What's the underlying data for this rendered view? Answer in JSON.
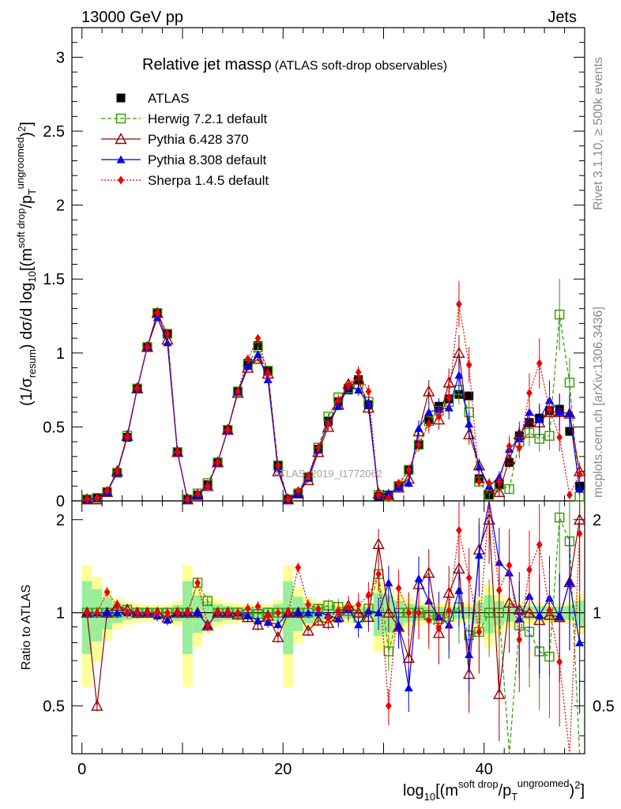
{
  "header": {
    "left": "13000 GeV pp",
    "right": "Jets",
    "side_top": "Rivet 3.1.10, ≥ 500k events",
    "side_bottom": "mcplots.cern.ch [arXiv:1306.3436]",
    "watermark": "ATLAS_2019_I1772062"
  },
  "chart_data": {
    "type": "scatter",
    "title": "Relative jet massρ",
    "subtitle": "(ATLAS soft-drop observables)",
    "xlabel": "log10[(m^{soft drop}/p_T^{ungroomed})^2]",
    "ylabel": "(1/σ_resum) dσ/d log10[(m^{soft drop}/p_T^{ungroomed})^2]",
    "ratio_ylabel": "Ratio to ATLAS",
    "xlim": [
      -1,
      50
    ],
    "ylim": [
      0,
      3.2
    ],
    "ratio_ylim": [
      0.35,
      2.3
    ],
    "x_ticks": [
      0,
      20,
      40
    ],
    "y_ticks": [
      0,
      0.5,
      1,
      1.5,
      2,
      2.5,
      3
    ],
    "ratio_ticks": [
      0.5,
      1,
      2
    ],
    "legend_position": "top-left",
    "x": [
      0.5,
      1.5,
      2.5,
      3.5,
      4.5,
      5.5,
      6.5,
      7.5,
      8.5,
      9.5,
      10.5,
      11.5,
      12.5,
      13.5,
      14.5,
      15.5,
      16.5,
      17.5,
      18.5,
      19.5,
      20.5,
      21.5,
      22.5,
      23.5,
      24.5,
      25.5,
      26.5,
      27.5,
      28.5,
      29.5,
      30.5,
      31.5,
      32.5,
      33.5,
      34.5,
      35.5,
      36.5,
      37.5,
      38.5,
      39.5,
      40.5,
      41.5,
      42.5,
      43.5,
      44.5,
      45.5,
      46.5,
      47.5,
      48.5,
      49.5
    ],
    "series": [
      {
        "name": "ATLAS",
        "color": "#000000",
        "marker": "square-filled",
        "line": "none",
        "values": [
          0.01,
          0.02,
          0.06,
          0.19,
          0.43,
          0.76,
          1.04,
          1.27,
          1.13,
          0.33,
          0.01,
          0.04,
          0.11,
          0.26,
          0.48,
          0.74,
          0.93,
          1.05,
          0.88,
          0.24,
          0.01,
          0.05,
          0.16,
          0.35,
          0.54,
          0.67,
          0.75,
          0.82,
          0.65,
          0.03,
          0.04,
          0.1,
          0.21,
          0.38,
          0.55,
          0.64,
          0.69,
          0.72,
          0.71,
          0.15,
          0.04,
          0.11,
          0.26,
          0.44,
          0.53,
          0.56,
          0.61,
          0.62,
          0.47,
          0.1
        ]
      },
      {
        "name": "Herwig 7.2.1 default",
        "color": "#339900",
        "marker": "square-open",
        "line": "dashed",
        "values": [
          0.01,
          0.02,
          0.06,
          0.19,
          0.44,
          0.76,
          1.04,
          1.27,
          1.13,
          0.33,
          0.01,
          0.05,
          0.12,
          0.26,
          0.48,
          0.74,
          0.92,
          1.04,
          0.88,
          0.24,
          0.01,
          0.05,
          0.16,
          0.36,
          0.57,
          0.7,
          0.76,
          0.79,
          0.67,
          0.04,
          0.03,
          0.1,
          0.21,
          0.38,
          0.54,
          0.61,
          0.67,
          0.75,
          0.6,
          0.13,
          0.04,
          0.11,
          0.08,
          0.4,
          0.46,
          0.42,
          0.44,
          1.26,
          0.8,
          0.03
        ]
      },
      {
        "name": "Pythia 6.428 370",
        "color": "#990000",
        "marker": "triangle-open",
        "line": "solid",
        "values": [
          0.01,
          0.01,
          0.06,
          0.2,
          0.44,
          0.76,
          1.04,
          1.27,
          1.09,
          0.33,
          0.01,
          0.04,
          0.1,
          0.26,
          0.48,
          0.73,
          0.9,
          0.96,
          0.86,
          0.2,
          0.01,
          0.05,
          0.14,
          0.33,
          0.5,
          0.65,
          0.79,
          0.82,
          0.63,
          0.05,
          0.04,
          0.09,
          0.15,
          0.47,
          0.74,
          0.55,
          0.8,
          1.0,
          0.45,
          0.24,
          0.08,
          0.06,
          0.28,
          0.45,
          0.53,
          0.53,
          0.6,
          0.6,
          0.59,
          0.2
        ]
      },
      {
        "name": "Pythia 8.308 default",
        "color": "#0000ee",
        "marker": "triangle-filled",
        "line": "solid",
        "values": [
          0.01,
          0.02,
          0.06,
          0.19,
          0.43,
          0.76,
          1.04,
          1.24,
          1.07,
          0.33,
          0.01,
          0.04,
          0.1,
          0.26,
          0.48,
          0.74,
          0.91,
          0.99,
          0.82,
          0.22,
          0.01,
          0.05,
          0.16,
          0.35,
          0.53,
          0.64,
          0.77,
          0.75,
          0.66,
          0.03,
          0.05,
          0.09,
          0.12,
          0.49,
          0.6,
          0.62,
          0.63,
          0.85,
          0.52,
          0.23,
          0.1,
          0.16,
          0.35,
          0.42,
          0.6,
          0.55,
          0.68,
          0.6,
          0.59,
          0.08
        ]
      },
      {
        "name": "Sherpa 1.4.5 default",
        "color": "#ee0000",
        "marker": "diamond-filled",
        "line": "dotted",
        "values": [
          0.01,
          0.02,
          0.07,
          0.2,
          0.43,
          0.76,
          1.04,
          1.27,
          1.13,
          0.33,
          0.01,
          0.05,
          0.1,
          0.26,
          0.48,
          0.74,
          0.96,
          1.1,
          0.86,
          0.24,
          0.01,
          0.07,
          0.17,
          0.36,
          0.52,
          0.68,
          0.78,
          0.87,
          0.74,
          0.04,
          0.02,
          0.12,
          0.21,
          0.38,
          0.52,
          0.57,
          0.7,
          1.33,
          0.92,
          0.13,
          0.12,
          0.13,
          0.37,
          0.36,
          0.73,
          0.93,
          0.62,
          0.43,
          0.04,
          0.18
        ]
      }
    ]
  }
}
